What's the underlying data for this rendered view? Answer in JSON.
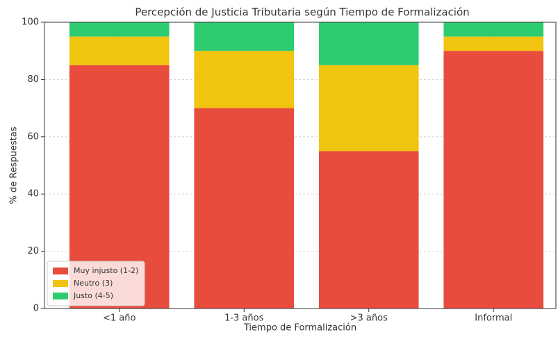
{
  "chart_data": {
    "type": "stacked_bar",
    "title": "Percepción de Justicia Tributaria según Tiempo de Formalización",
    "xlabel": "Tiempo de Formalización",
    "ylabel": "% de Respuestas",
    "categories": [
      "<1 año",
      "1-3 años",
      ">3 años",
      "Informal"
    ],
    "series": [
      {
        "name": "Muy injusto (1-2)",
        "color": "#e74c3c",
        "values": [
          85,
          70,
          55,
          90
        ]
      },
      {
        "name": "Neutro (3)",
        "color": "#f1c40f",
        "values": [
          10,
          20,
          30,
          5
        ]
      },
      {
        "name": "Justo (4-5)",
        "color": "#2ecc71",
        "values": [
          5,
          10,
          15,
          5
        ]
      }
    ],
    "ylim": [
      0,
      100
    ],
    "yticks": [
      0,
      20,
      40,
      60,
      80,
      100
    ],
    "grid": true,
    "legend": "lower left"
  }
}
